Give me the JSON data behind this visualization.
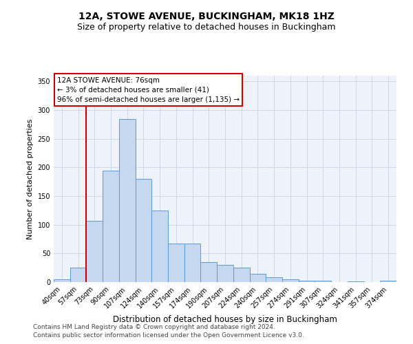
{
  "title": "12A, STOWE AVENUE, BUCKINGHAM, MK18 1HZ",
  "subtitle": "Size of property relative to detached houses in Buckingham",
  "xlabel": "Distribution of detached houses by size in Buckingham",
  "ylabel": "Number of detached properties",
  "categories": [
    "40sqm",
    "57sqm",
    "73sqm",
    "90sqm",
    "107sqm",
    "124sqm",
    "140sqm",
    "157sqm",
    "174sqm",
    "190sqm",
    "207sqm",
    "224sqm",
    "240sqm",
    "257sqm",
    "274sqm",
    "291sqm",
    "307sqm",
    "324sqm",
    "341sqm",
    "357sqm",
    "374sqm"
  ],
  "values": [
    5,
    25,
    107,
    195,
    285,
    180,
    125,
    67,
    67,
    35,
    30,
    25,
    15,
    8,
    5,
    3,
    2,
    0,
    1,
    0,
    3
  ],
  "bar_color": "#c5d8f0",
  "bar_edge_color": "#5b9bd5",
  "vline_x_index": 2,
  "vline_color": "#cc0000",
  "annotation_text": "12A STOWE AVENUE: 76sqm\n← 3% of detached houses are smaller (41)\n96% of semi-detached houses are larger (1,135) →",
  "annotation_box_color": "#ffffff",
  "annotation_box_edge": "#cc0000",
  "ylim": [
    0,
    360
  ],
  "yticks": [
    0,
    50,
    100,
    150,
    200,
    250,
    300,
    350
  ],
  "grid_color": "#d0d8e8",
  "bg_color": "#eef2fa",
  "footer1": "Contains HM Land Registry data © Crown copyright and database right 2024.",
  "footer2": "Contains public sector information licensed under the Open Government Licence v3.0.",
  "title_fontsize": 10,
  "subtitle_fontsize": 9,
  "tick_fontsize": 7,
  "ylabel_fontsize": 8,
  "xlabel_fontsize": 8.5,
  "footer_fontsize": 6.5,
  "annotation_fontsize": 7.5
}
